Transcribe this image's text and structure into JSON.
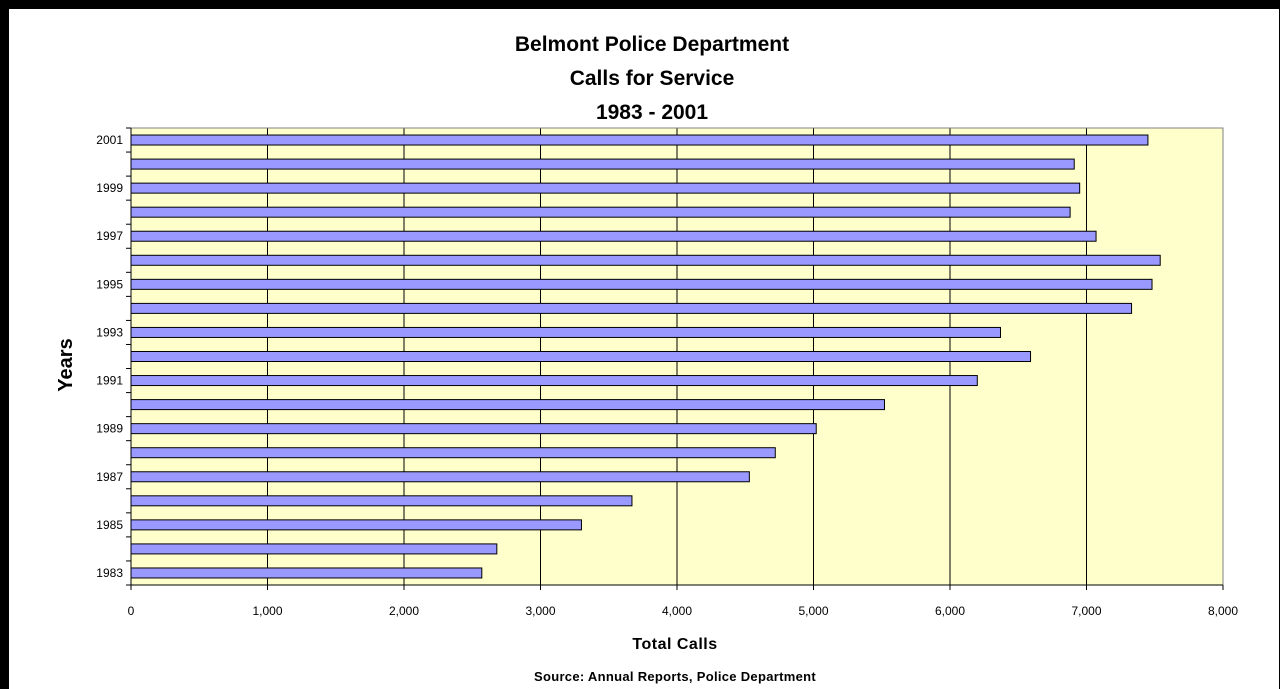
{
  "chart_data": {
    "type": "bar",
    "orientation": "horizontal",
    "title": [
      "Belmont Police Department",
      "Calls for Service",
      "1983 - 2001"
    ],
    "xlabel": "Total Calls",
    "ylabel": "Years",
    "source": "Source: Annual Reports, Police Department",
    "categories": [
      "1983",
      "1984",
      "1985",
      "1986",
      "1987",
      "1988",
      "1989",
      "1990",
      "1991",
      "1992",
      "1993",
      "1994",
      "1995",
      "1996",
      "1997",
      "1998",
      "1999",
      "2000",
      "2001"
    ],
    "category_labels_shown": [
      "1983",
      "",
      "1985",
      "",
      "1987",
      "",
      "1989",
      "",
      "1991",
      "",
      "1993",
      "",
      "1995",
      "",
      "1997",
      "",
      "1999",
      "",
      "2001"
    ],
    "values": [
      2570,
      2680,
      3300,
      3670,
      4530,
      4720,
      5020,
      5520,
      6200,
      6590,
      6370,
      7330,
      7480,
      7540,
      7070,
      6880,
      6950,
      6910,
      7450
    ],
    "xlim": [
      0,
      8000
    ],
    "xticks": [
      0,
      1000,
      2000,
      3000,
      4000,
      5000,
      6000,
      7000,
      8000
    ],
    "xtick_labels": [
      "0",
      "1,000",
      "2,000",
      "3,000",
      "4,000",
      "5,000",
      "6,000",
      "7,000",
      "8,000"
    ],
    "grid": "vertical major gridlines",
    "legend": "none",
    "colors": {
      "bar_fill": "#9999FF",
      "bar_stroke": "#000000",
      "plot_background": "#FFFFCC",
      "gridline": "#000000",
      "frame": "#000000"
    }
  }
}
